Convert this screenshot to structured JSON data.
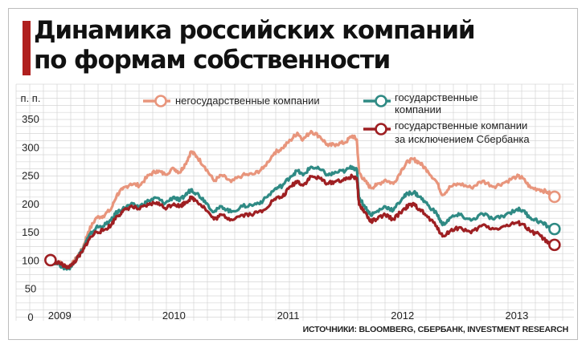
{
  "title": "Динамика российских компаний\nпо формам собственности",
  "source": "ИСТОЧНИКИ: BLOOMBERG, СБЕРБАНК, INVESTMENT RESEARCH",
  "chart_data": {
    "type": "line",
    "ylabel": "п. п.",
    "ylim": [
      0,
      350
    ],
    "yticks": [
      0,
      50,
      100,
      150,
      200,
      250,
      300,
      350
    ],
    "xlim": [
      2008.9,
      2013.5
    ],
    "xticks": [
      2009,
      2010,
      2011,
      2012,
      2013
    ],
    "grid": true,
    "legend": "top",
    "series": [
      {
        "name": "негосударственные компании",
        "color": "#e8957c",
        "points": [
          [
            2008.92,
            100
          ],
          [
            2009.0,
            96
          ],
          [
            2009.05,
            88
          ],
          [
            2009.1,
            90
          ],
          [
            2009.15,
            105
          ],
          [
            2009.2,
            120
          ],
          [
            2009.25,
            150
          ],
          [
            2009.32,
            175
          ],
          [
            2009.38,
            178
          ],
          [
            2009.45,
            190
          ],
          [
            2009.5,
            215
          ],
          [
            2009.55,
            225
          ],
          [
            2009.62,
            235
          ],
          [
            2009.7,
            232
          ],
          [
            2009.78,
            250
          ],
          [
            2009.85,
            258
          ],
          [
            2009.92,
            252
          ],
          [
            2010.0,
            262
          ],
          [
            2010.05,
            255
          ],
          [
            2010.1,
            270
          ],
          [
            2010.15,
            292
          ],
          [
            2010.2,
            283
          ],
          [
            2010.27,
            265
          ],
          [
            2010.35,
            240
          ],
          [
            2010.42,
            250
          ],
          [
            2010.5,
            238
          ],
          [
            2010.6,
            250
          ],
          [
            2010.7,
            252
          ],
          [
            2010.78,
            262
          ],
          [
            2010.88,
            290
          ],
          [
            2010.95,
            298
          ],
          [
            2011.02,
            312
          ],
          [
            2011.08,
            325
          ],
          [
            2011.13,
            313
          ],
          [
            2011.2,
            328
          ],
          [
            2011.28,
            318
          ],
          [
            2011.35,
            302
          ],
          [
            2011.42,
            305
          ],
          [
            2011.5,
            308
          ],
          [
            2011.56,
            320
          ],
          [
            2011.6,
            313
          ],
          [
            2011.62,
            255
          ],
          [
            2011.67,
            240
          ],
          [
            2011.72,
            228
          ],
          [
            2011.77,
            232
          ],
          [
            2011.85,
            242
          ],
          [
            2011.92,
            235
          ],
          [
            2012.0,
            262
          ],
          [
            2012.05,
            275
          ],
          [
            2012.1,
            278
          ],
          [
            2012.15,
            272
          ],
          [
            2012.22,
            258
          ],
          [
            2012.3,
            238
          ],
          [
            2012.35,
            215
          ],
          [
            2012.42,
            230
          ],
          [
            2012.5,
            235
          ],
          [
            2012.6,
            228
          ],
          [
            2012.7,
            240
          ],
          [
            2012.8,
            230
          ],
          [
            2012.9,
            238
          ],
          [
            2013.0,
            248
          ],
          [
            2013.05,
            245
          ],
          [
            2013.12,
            228
          ],
          [
            2013.2,
            225
          ],
          [
            2013.27,
            220
          ],
          [
            2013.33,
            212
          ]
        ]
      },
      {
        "name": "государственные компании",
        "color": "#2f8a84",
        "points": [
          [
            2008.92,
            100
          ],
          [
            2009.0,
            92
          ],
          [
            2009.05,
            85
          ],
          [
            2009.1,
            88
          ],
          [
            2009.15,
            105
          ],
          [
            2009.2,
            118
          ],
          [
            2009.25,
            140
          ],
          [
            2009.32,
            158
          ],
          [
            2009.38,
            160
          ],
          [
            2009.45,
            170
          ],
          [
            2009.5,
            185
          ],
          [
            2009.55,
            190
          ],
          [
            2009.62,
            198
          ],
          [
            2009.7,
            195
          ],
          [
            2009.78,
            205
          ],
          [
            2009.85,
            210
          ],
          [
            2009.92,
            200
          ],
          [
            2010.0,
            212
          ],
          [
            2010.05,
            205
          ],
          [
            2010.1,
            215
          ],
          [
            2010.15,
            225
          ],
          [
            2010.2,
            218
          ],
          [
            2010.27,
            205
          ],
          [
            2010.35,
            185
          ],
          [
            2010.42,
            195
          ],
          [
            2010.5,
            185
          ],
          [
            2010.6,
            195
          ],
          [
            2010.7,
            198
          ],
          [
            2010.78,
            205
          ],
          [
            2010.88,
            225
          ],
          [
            2010.95,
            232
          ],
          [
            2011.02,
            248
          ],
          [
            2011.08,
            258
          ],
          [
            2011.13,
            250
          ],
          [
            2011.2,
            265
          ],
          [
            2011.28,
            260
          ],
          [
            2011.35,
            250
          ],
          [
            2011.42,
            255
          ],
          [
            2011.5,
            258
          ],
          [
            2011.56,
            265
          ],
          [
            2011.6,
            260
          ],
          [
            2011.62,
            210
          ],
          [
            2011.67,
            195
          ],
          [
            2011.72,
            180
          ],
          [
            2011.77,
            185
          ],
          [
            2011.85,
            195
          ],
          [
            2011.92,
            188
          ],
          [
            2012.0,
            210
          ],
          [
            2012.05,
            218
          ],
          [
            2012.1,
            220
          ],
          [
            2012.15,
            212
          ],
          [
            2012.22,
            198
          ],
          [
            2012.3,
            182
          ],
          [
            2012.35,
            162
          ],
          [
            2012.42,
            175
          ],
          [
            2012.5,
            180
          ],
          [
            2012.6,
            170
          ],
          [
            2012.7,
            182
          ],
          [
            2012.8,
            172
          ],
          [
            2012.9,
            180
          ],
          [
            2013.0,
            190
          ],
          [
            2013.05,
            188
          ],
          [
            2013.12,
            175
          ],
          [
            2013.2,
            168
          ],
          [
            2013.27,
            160
          ],
          [
            2013.33,
            155
          ]
        ]
      },
      {
        "name": "государственные компании\nза исключением Сбербанка",
        "color": "#9e1f22",
        "points": [
          [
            2008.92,
            100
          ],
          [
            2009.0,
            95
          ],
          [
            2009.05,
            88
          ],
          [
            2009.1,
            90
          ],
          [
            2009.15,
            102
          ],
          [
            2009.2,
            115
          ],
          [
            2009.25,
            135
          ],
          [
            2009.32,
            150
          ],
          [
            2009.38,
            152
          ],
          [
            2009.45,
            162
          ],
          [
            2009.5,
            178
          ],
          [
            2009.55,
            185
          ],
          [
            2009.62,
            195
          ],
          [
            2009.7,
            190
          ],
          [
            2009.78,
            198
          ],
          [
            2009.85,
            202
          ],
          [
            2009.92,
            192
          ],
          [
            2010.0,
            200
          ],
          [
            2010.05,
            195
          ],
          [
            2010.1,
            202
          ],
          [
            2010.15,
            210
          ],
          [
            2010.2,
            205
          ],
          [
            2010.27,
            192
          ],
          [
            2010.35,
            172
          ],
          [
            2010.42,
            180
          ],
          [
            2010.5,
            172
          ],
          [
            2010.6,
            180
          ],
          [
            2010.7,
            182
          ],
          [
            2010.78,
            188
          ],
          [
            2010.88,
            208
          ],
          [
            2010.95,
            212
          ],
          [
            2011.02,
            230
          ],
          [
            2011.08,
            240
          ],
          [
            2011.13,
            232
          ],
          [
            2011.2,
            248
          ],
          [
            2011.28,
            244
          ],
          [
            2011.35,
            235
          ],
          [
            2011.42,
            240
          ],
          [
            2011.5,
            242
          ],
          [
            2011.56,
            248
          ],
          [
            2011.6,
            245
          ],
          [
            2011.62,
            198
          ],
          [
            2011.67,
            185
          ],
          [
            2011.72,
            168
          ],
          [
            2011.77,
            172
          ],
          [
            2011.85,
            180
          ],
          [
            2011.92,
            172
          ],
          [
            2012.0,
            188
          ],
          [
            2012.05,
            196
          ],
          [
            2012.1,
            198
          ],
          [
            2012.15,
            190
          ],
          [
            2012.22,
            176
          ],
          [
            2012.3,
            160
          ],
          [
            2012.35,
            142
          ],
          [
            2012.42,
            152
          ],
          [
            2012.5,
            158
          ],
          [
            2012.6,
            148
          ],
          [
            2012.7,
            162
          ],
          [
            2012.8,
            155
          ],
          [
            2012.9,
            160
          ],
          [
            2013.0,
            166
          ],
          [
            2013.05,
            164
          ],
          [
            2013.12,
            150
          ],
          [
            2013.2,
            145
          ],
          [
            2013.27,
            130
          ],
          [
            2013.33,
            127
          ]
        ]
      }
    ]
  }
}
